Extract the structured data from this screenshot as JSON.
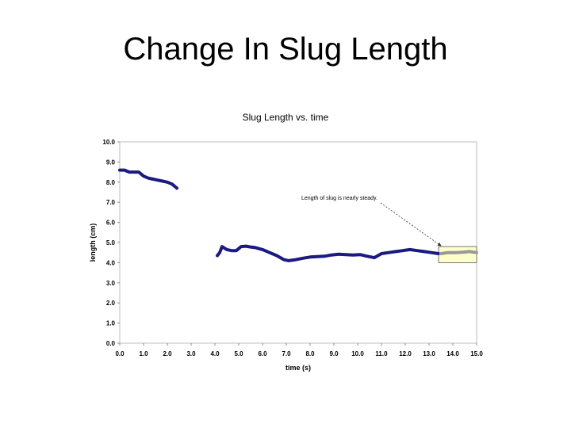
{
  "slide": {
    "title": "Change In Slug Length"
  },
  "chart_data": {
    "type": "line",
    "title": "Slug Length vs. time",
    "xlabel": "time (s)",
    "ylabel": "length (cm)",
    "xlim": [
      0,
      15
    ],
    "ylim": [
      0,
      10
    ],
    "x_ticks": [
      "0.0",
      "1.0",
      "2.0",
      "3.0",
      "4.0",
      "5.0",
      "6.0",
      "7.0",
      "8.0",
      "9.0",
      "10.0",
      "11.0",
      "12.0",
      "13.0",
      "14.0",
      "15.0"
    ],
    "y_ticks": [
      "0.0",
      "1.0",
      "2.0",
      "3.0",
      "4.0",
      "5.0",
      "6.0",
      "7.0",
      "8.0",
      "9.0",
      "10.0"
    ],
    "grid": false,
    "series_color": "#1a1a80",
    "steady_color": "#999999",
    "highlight_color": "#ffffcc",
    "series": [
      {
        "segments": [
          {
            "x": [
              0.0,
              0.2,
              0.4,
              0.6,
              0.8,
              1.0,
              1.2,
              1.4,
              1.6,
              1.8,
              2.0,
              2.2,
              2.4
            ],
            "y": [
              8.6,
              8.6,
              8.5,
              8.5,
              8.5,
              8.3,
              8.2,
              8.15,
              8.1,
              8.05,
              8.0,
              7.9,
              7.7
            ]
          },
          {
            "x": [
              4.1,
              4.2,
              4.3,
              4.5,
              4.7,
              4.9,
              5.1,
              5.3,
              5.5,
              5.7,
              6.0,
              6.3,
              6.6,
              6.9,
              7.1,
              7.4,
              7.7,
              8.0,
              8.3,
              8.6,
              8.9,
              9.2,
              9.5,
              9.8,
              10.1,
              10.4,
              10.7,
              11.0,
              11.3,
              11.6,
              11.9,
              12.2,
              12.5,
              12.8,
              13.1,
              13.4
            ],
            "y": [
              4.35,
              4.5,
              4.8,
              4.65,
              4.6,
              4.6,
              4.8,
              4.82,
              4.78,
              4.75,
              4.65,
              4.5,
              4.35,
              4.15,
              4.1,
              4.15,
              4.22,
              4.28,
              4.3,
              4.32,
              4.38,
              4.42,
              4.4,
              4.38,
              4.4,
              4.32,
              4.25,
              4.45,
              4.5,
              4.55,
              4.6,
              4.65,
              4.6,
              4.55,
              4.5,
              4.45
            ]
          }
        ]
      }
    ],
    "steady_series": {
      "x": [
        13.5,
        13.8,
        14.1,
        14.4,
        14.7,
        15.0
      ],
      "y": [
        4.45,
        4.5,
        4.5,
        4.52,
        4.55,
        4.5
      ]
    },
    "highlight": {
      "x0": 13.4,
      "x1": 15.0,
      "y0": 4.0,
      "y1": 4.8
    },
    "annotation": {
      "text": "Length of slug is nearly steady.",
      "point": [
        13.5,
        4.8
      ]
    }
  }
}
